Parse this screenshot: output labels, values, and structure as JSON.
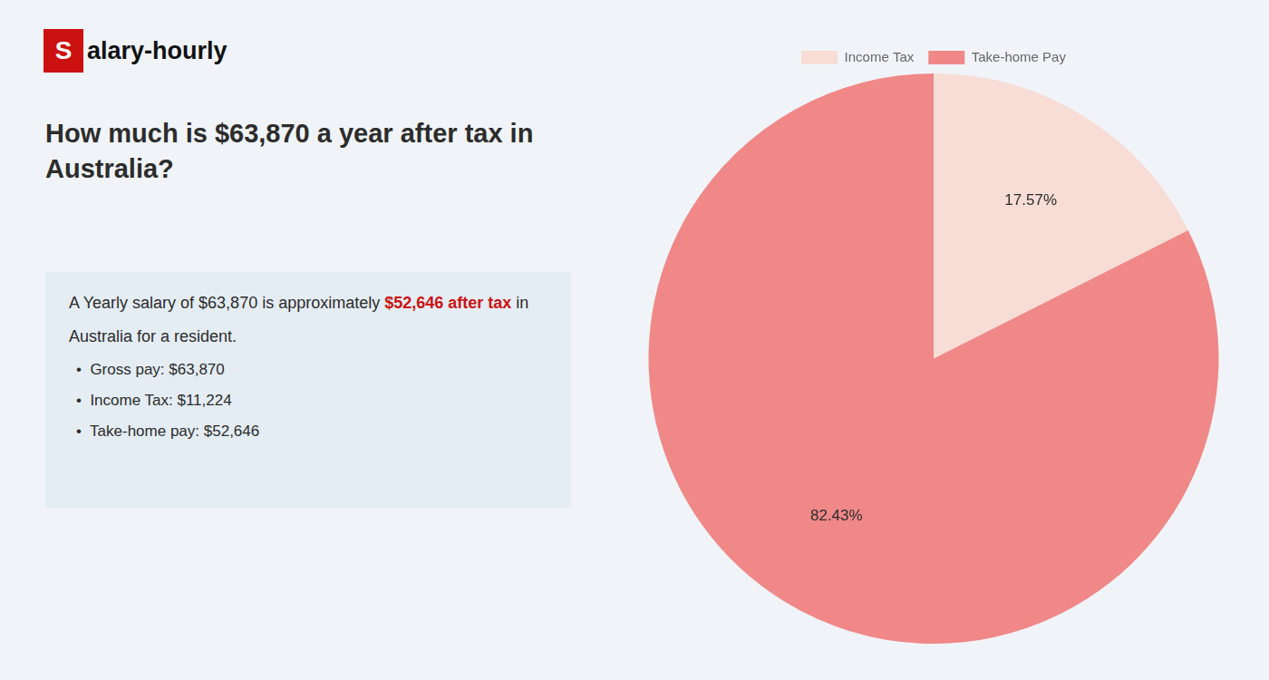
{
  "chart_data": {
    "type": "pie",
    "title": "How much is $63,870 a year after tax in\nAustralia?",
    "categories": [
      "Income Tax",
      "Take-home Pay"
    ],
    "values": [
      17.57,
      82.43
    ],
    "value_labels": [
      "17.57%",
      "82.43%"
    ],
    "colors": [
      "#f7ddd5",
      "#f08888"
    ],
    "data_labels": true,
    "legend": "top",
    "annotations": [
      {
        "text": "S",
        "color": "#cc1111"
      },
      {
        "text": "alary-hourly"
      },
      {
        "text": "A Yearly salary of $63,870 is approximately "
      },
      {
        "text": "$52,646 after tax",
        "color": "#cc1111"
      },
      {
        "text": " in"
      },
      {
        "text": "Australia for a resident."
      },
      {
        "text": "•  Gross pay: $63,870"
      },
      {
        "text": "•  Income Tax: $11,224"
      },
      {
        "text": "•  Take-home pay: $52,646"
      }
    ]
  }
}
